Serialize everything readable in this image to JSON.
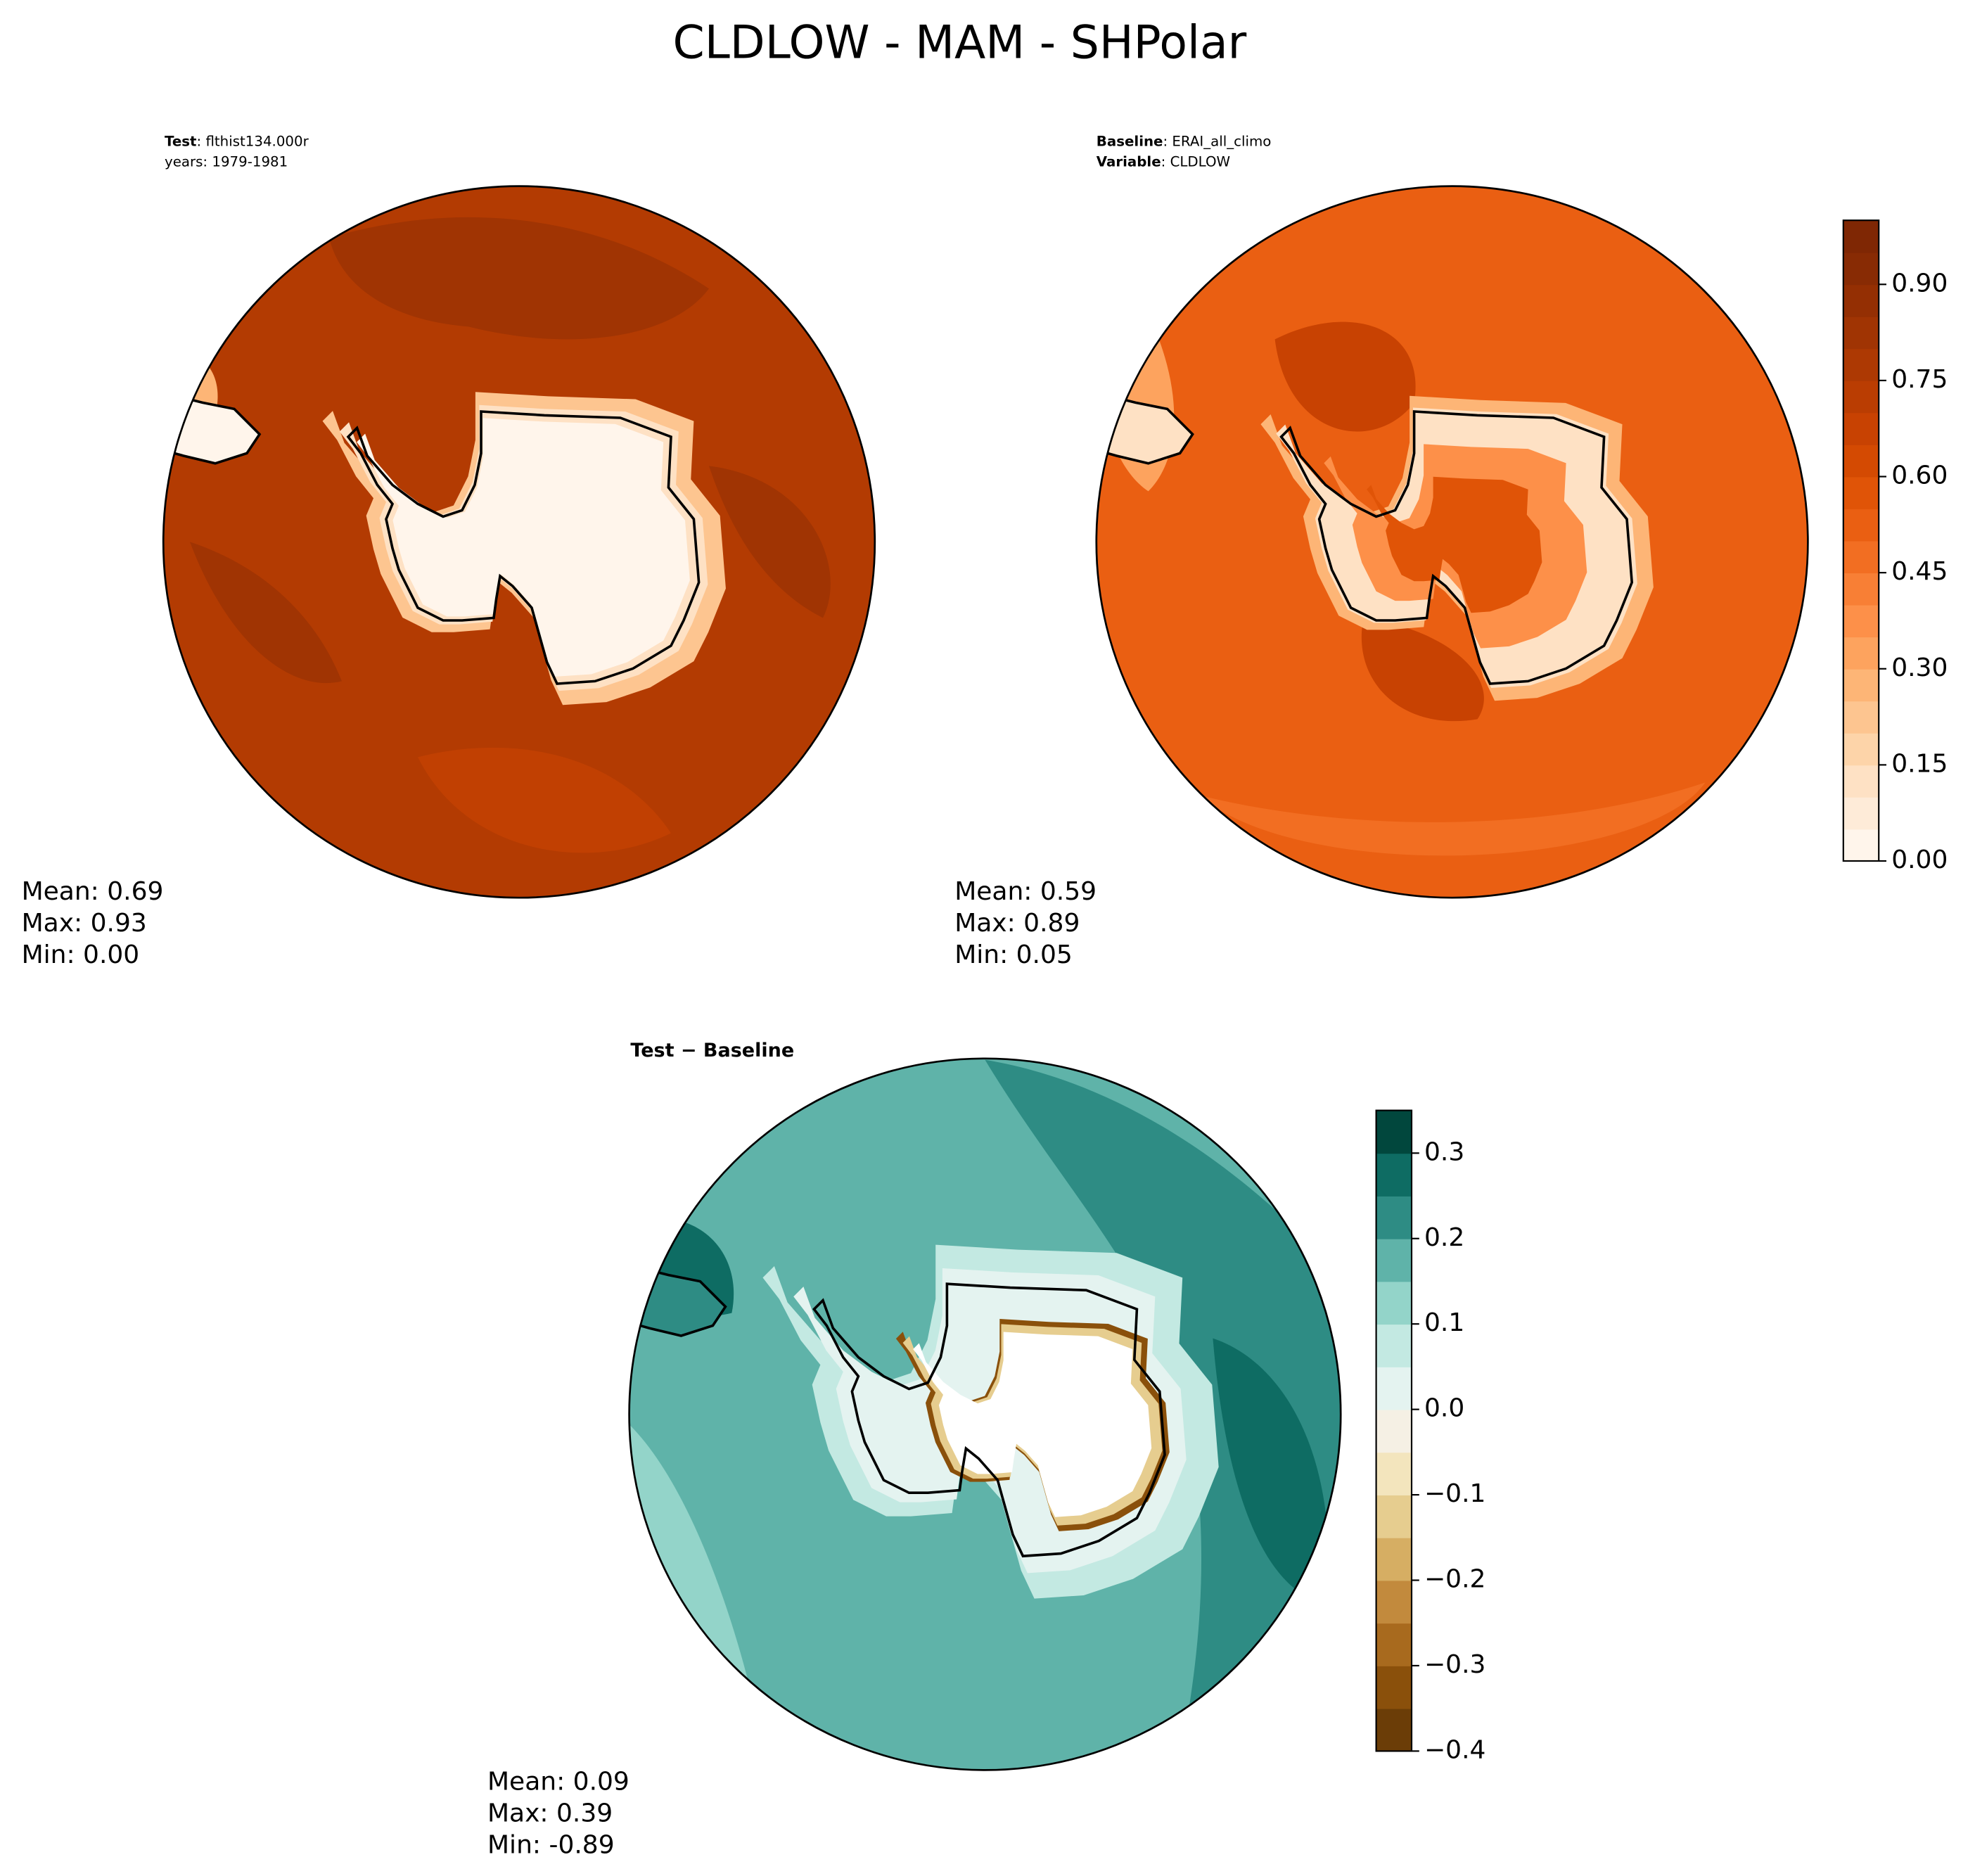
{
  "title": "CLDLOW - MAM - SHPolar",
  "panels": [
    {
      "lines": [
        {
          "name": "Test",
          "value": ": flthist134.000r"
        },
        {
          "name": "",
          "value": "years: 1979-1981"
        }
      ],
      "stats": [
        "Mean:  0.69",
        "Max:  0.93",
        "Min:  0.00"
      ]
    },
    {
      "lines": [
        {
          "name": "Baseline",
          "value": ": ERAI_all_climo"
        },
        {
          "name": "Variable",
          "value": ": CLDLOW"
        }
      ],
      "stats": [
        "Mean:  0.59",
        "Max:  0.89",
        "Min:  0.05"
      ]
    },
    {
      "lines": [
        {
          "name": "Test − Baseline",
          "value": ""
        }
      ],
      "stats": [
        "Mean:  0.09",
        "Max:  0.39",
        "Min: -0.89"
      ]
    }
  ],
  "colorbars": [
    {
      "lim": [
        0,
        1.0
      ],
      "colors": [
        "#fff5eb",
        "#feebd8",
        "#fee1c4",
        "#fdd4a9",
        "#fdc590",
        "#fdb576",
        "#fda35e",
        "#fd9049",
        "#f87f35",
        "#f26e22",
        "#ea5f12",
        "#e05407",
        "#d44a02",
        "#c84202",
        "#ba3d02",
        "#ad3903",
        "#a03403",
        "#942f03",
        "#882b04",
        "#7f2704"
      ],
      "ticks": [
        {
          "value": 0,
          "label": "0.00"
        },
        {
          "value": 0.15,
          "label": "0.15"
        },
        {
          "value": 0.3,
          "label": "0.30"
        },
        {
          "value": 0.45,
          "label": "0.45"
        },
        {
          "value": 0.6,
          "label": "0.60"
        },
        {
          "value": 0.75,
          "label": "0.75"
        },
        {
          "value": 0.9,
          "label": "0.90"
        }
      ]
    },
    {
      "lim": [
        -0.4,
        0.35
      ],
      "colors": [
        "#6b3d07",
        "#8a500b",
        "#a86a1e",
        "#c28a3d",
        "#d6ae63",
        "#e6cd8f",
        "#f3e5bd",
        "#f5f0e4",
        "#e4f3f0",
        "#c3e9e2",
        "#93d4c9",
        "#5fb3a9",
        "#2e8c84",
        "#0e6c63",
        "#01473d"
      ],
      "ticks": [
        {
          "value": -0.4,
          "label": "−0.4"
        },
        {
          "value": -0.3,
          "label": "−0.3"
        },
        {
          "value": -0.2,
          "label": "−0.2"
        },
        {
          "value": -0.1,
          "label": "−0.1"
        },
        {
          "value": 0.0,
          "label": "0.0"
        },
        {
          "value": 0.1,
          "label": "0.1"
        },
        {
          "value": 0.2,
          "label": "0.2"
        },
        {
          "value": 0.3,
          "label": "0.3"
        }
      ]
    }
  ]
}
